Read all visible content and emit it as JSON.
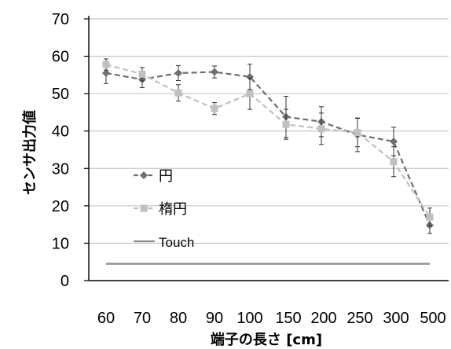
{
  "chart_data": {
    "type": "line",
    "title": "",
    "xlabel": "端子の長さ [cm]",
    "ylabel": "センサ出力値",
    "categories": [
      "60",
      "70",
      "80",
      "90",
      "100",
      "150",
      "200",
      "250",
      "300",
      "500"
    ],
    "ylim": [
      0,
      70
    ],
    "yticks": [
      0,
      10,
      20,
      30,
      40,
      50,
      60,
      70
    ],
    "grid": true,
    "legend_position": "lower-left",
    "series": [
      {
        "name": "円",
        "color": "#6f6f6f",
        "marker": "diamond",
        "line_style": "dashed",
        "values": [
          55.5,
          53.8,
          55.5,
          55.8,
          54.5,
          43.8,
          42.5,
          39.0,
          37.2,
          14.8
        ],
        "error": [
          2.8,
          2.2,
          2.0,
          1.6,
          3.4,
          5.5,
          4.0,
          4.5,
          3.8,
          2.2
        ]
      },
      {
        "name": "楕円",
        "color": "#c0c0c0",
        "marker": "square",
        "line_style": "dashed",
        "values": [
          57.8,
          55.2,
          50.2,
          46.0,
          50.0,
          41.8,
          40.6,
          39.6,
          31.8,
          17.0
        ],
        "error": [
          1.5,
          1.8,
          2.2,
          1.6,
          4.2,
          4.0,
          4.2,
          3.8,
          4.0,
          2.4
        ]
      },
      {
        "name": "Touch",
        "color": "#8a8a8a",
        "marker": "none",
        "line_style": "solid",
        "values": [
          4.5,
          4.5,
          4.5,
          4.5,
          4.5,
          4.5,
          4.5,
          4.5,
          4.5,
          4.5
        ]
      }
    ]
  }
}
